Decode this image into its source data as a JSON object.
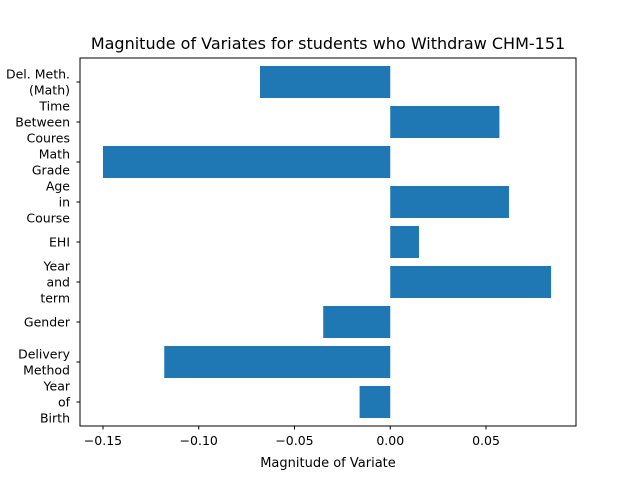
{
  "chart_data": {
    "type": "bar",
    "orientation": "horizontal",
    "title": "Magnitude of Variates for students who Withdraw CHM-151",
    "xlabel": "Magnitude of Variate",
    "ylabel": "",
    "categories": [
      "Year\nof\nBirth",
      "Delivery\nMethod",
      "Gender",
      "Year\nand\nterm",
      "EHI",
      "Age\nin\nCourse",
      "Math\nGrade",
      "Time\nBetween\nCoures",
      "Del. Meth.\n(Math)"
    ],
    "values": [
      -0.016,
      -0.118,
      -0.035,
      0.084,
      0.015,
      0.062,
      -0.15,
      0.057,
      -0.068
    ],
    "xlim": [
      -0.162,
      0.097
    ],
    "xticks": [
      -0.15,
      -0.1,
      -0.05,
      0.0,
      0.05
    ],
    "xtick_labels": [
      "−0.15",
      "−0.10",
      "−0.05",
      "0.00",
      "0.05"
    ],
    "grid": false,
    "bar_color": "#1f77b4"
  }
}
